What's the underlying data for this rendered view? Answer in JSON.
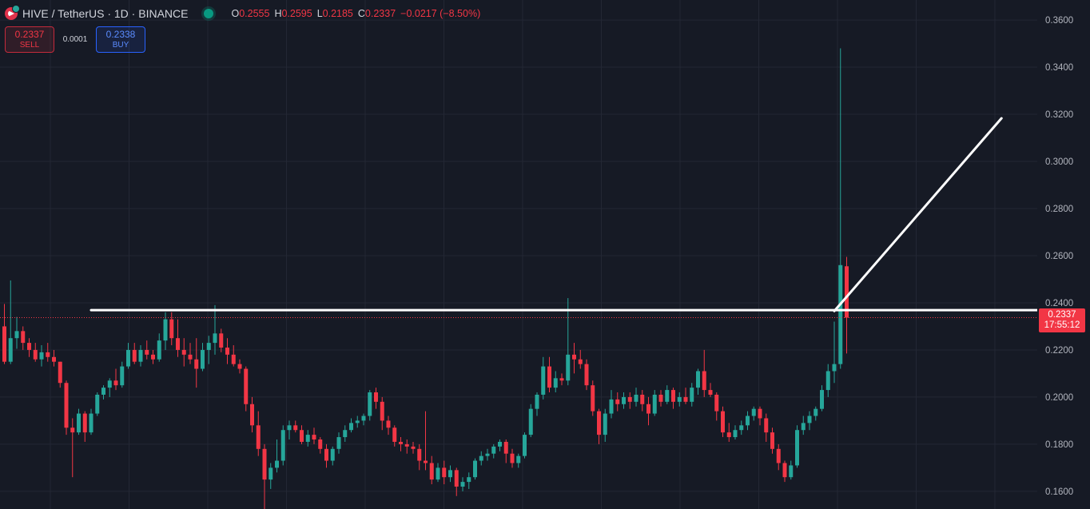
{
  "header": {
    "symbol": "HIVE / TetherUS · 1D · BINANCE",
    "ohlc": [
      {
        "key": "O",
        "value": "0.2555"
      },
      {
        "key": "H",
        "value": "0.2595"
      },
      {
        "key": "L",
        "value": "0.2185"
      },
      {
        "key": "C",
        "value": "0.2337"
      }
    ],
    "change": "−0.0217 (−8.50%)"
  },
  "trade": {
    "sell_price": "0.2337",
    "sell_label": "SELL",
    "spread": "0.0001",
    "buy_price": "0.2338",
    "buy_label": "BUY"
  },
  "price_tag": {
    "price": "0.2337",
    "countdown": "17:55:12"
  },
  "colors": {
    "background": "#161a25",
    "up": "#26a69a",
    "down": "#f23645",
    "grid": "#232734",
    "drawing": "#ffffff"
  },
  "chart_data": {
    "type": "candlestick",
    "ylim": [
      0.1525,
      0.3685
    ],
    "y_ticks": [
      "0.1600",
      "0.1800",
      "0.2000",
      "0.2200",
      "0.2400",
      "0.2600",
      "0.2800",
      "0.3000",
      "0.3200",
      "0.3400",
      "0.3600"
    ],
    "last_price": 0.2337,
    "candles": [
      [
        0.23,
        0.2395,
        0.214,
        0.215
      ],
      [
        0.215,
        0.2495,
        0.214,
        0.225
      ],
      [
        0.225,
        0.234,
        0.2205,
        0.228
      ],
      [
        0.228,
        0.23,
        0.22,
        0.223
      ],
      [
        0.223,
        0.225,
        0.217,
        0.22
      ],
      [
        0.22,
        0.223,
        0.215,
        0.216
      ],
      [
        0.216,
        0.222,
        0.213,
        0.219
      ],
      [
        0.219,
        0.223,
        0.215,
        0.217
      ],
      [
        0.217,
        0.22,
        0.213,
        0.215
      ],
      [
        0.215,
        0.215,
        0.204,
        0.206
      ],
      [
        0.206,
        0.207,
        0.184,
        0.187
      ],
      [
        0.187,
        0.191,
        0.166,
        0.185
      ],
      [
        0.185,
        0.195,
        0.184,
        0.193
      ],
      [
        0.193,
        0.194,
        0.181,
        0.185
      ],
      [
        0.185,
        0.195,
        0.184,
        0.193
      ],
      [
        0.193,
        0.202,
        0.192,
        0.201
      ],
      [
        0.201,
        0.205,
        0.199,
        0.204
      ],
      [
        0.204,
        0.208,
        0.2,
        0.207
      ],
      [
        0.207,
        0.212,
        0.203,
        0.205
      ],
      [
        0.205,
        0.215,
        0.204,
        0.213
      ],
      [
        0.213,
        0.223,
        0.212,
        0.22
      ],
      [
        0.22,
        0.223,
        0.214,
        0.215
      ],
      [
        0.215,
        0.222,
        0.213,
        0.22
      ],
      [
        0.22,
        0.224,
        0.216,
        0.218
      ],
      [
        0.218,
        0.22,
        0.214,
        0.216
      ],
      [
        0.216,
        0.227,
        0.215,
        0.224
      ],
      [
        0.224,
        0.236,
        0.22,
        0.233
      ],
      [
        0.233,
        0.236,
        0.222,
        0.225
      ],
      [
        0.225,
        0.233,
        0.217,
        0.22
      ],
      [
        0.22,
        0.225,
        0.213,
        0.218
      ],
      [
        0.218,
        0.223,
        0.214,
        0.216
      ],
      [
        0.216,
        0.225,
        0.204,
        0.212
      ],
      [
        0.212,
        0.223,
        0.211,
        0.22
      ],
      [
        0.22,
        0.226,
        0.214,
        0.223
      ],
      [
        0.223,
        0.239,
        0.218,
        0.227
      ],
      [
        0.227,
        0.229,
        0.219,
        0.221
      ],
      [
        0.221,
        0.225,
        0.214,
        0.218
      ],
      [
        0.218,
        0.222,
        0.213,
        0.214
      ],
      [
        0.214,
        0.216,
        0.21,
        0.212
      ],
      [
        0.212,
        0.213,
        0.194,
        0.197
      ],
      [
        0.197,
        0.2,
        0.185,
        0.188
      ],
      [
        0.188,
        0.194,
        0.175,
        0.178
      ],
      [
        0.178,
        0.18,
        0.152,
        0.165
      ],
      [
        0.165,
        0.172,
        0.161,
        0.17
      ],
      [
        0.17,
        0.182,
        0.168,
        0.173
      ],
      [
        0.173,
        0.188,
        0.171,
        0.186
      ],
      [
        0.186,
        0.19,
        0.182,
        0.188
      ],
      [
        0.188,
        0.19,
        0.185,
        0.186
      ],
      [
        0.186,
        0.188,
        0.18,
        0.181
      ],
      [
        0.181,
        0.186,
        0.179,
        0.184
      ],
      [
        0.184,
        0.187,
        0.18,
        0.182
      ],
      [
        0.182,
        0.183,
        0.176,
        0.178
      ],
      [
        0.178,
        0.18,
        0.17,
        0.173
      ],
      [
        0.173,
        0.179,
        0.171,
        0.178
      ],
      [
        0.178,
        0.185,
        0.176,
        0.183
      ],
      [
        0.183,
        0.188,
        0.181,
        0.186
      ],
      [
        0.186,
        0.191,
        0.185,
        0.189
      ],
      [
        0.189,
        0.192,
        0.187,
        0.19
      ],
      [
        0.19,
        0.193,
        0.188,
        0.192
      ],
      [
        0.192,
        0.203,
        0.19,
        0.202
      ],
      [
        0.202,
        0.204,
        0.195,
        0.198
      ],
      [
        0.198,
        0.2,
        0.186,
        0.19
      ],
      [
        0.19,
        0.192,
        0.184,
        0.187
      ],
      [
        0.187,
        0.188,
        0.179,
        0.181
      ],
      [
        0.181,
        0.183,
        0.177,
        0.18
      ],
      [
        0.18,
        0.182,
        0.176,
        0.179
      ],
      [
        0.179,
        0.181,
        0.176,
        0.178
      ],
      [
        0.178,
        0.18,
        0.169,
        0.173
      ],
      [
        0.173,
        0.194,
        0.169,
        0.172
      ],
      [
        0.172,
        0.175,
        0.163,
        0.165
      ],
      [
        0.165,
        0.172,
        0.164,
        0.17
      ],
      [
        0.17,
        0.173,
        0.163,
        0.166
      ],
      [
        0.166,
        0.171,
        0.164,
        0.169
      ],
      [
        0.169,
        0.17,
        0.158,
        0.162
      ],
      [
        0.162,
        0.166,
        0.16,
        0.164
      ],
      [
        0.164,
        0.168,
        0.161,
        0.166
      ],
      [
        0.166,
        0.174,
        0.165,
        0.173
      ],
      [
        0.173,
        0.177,
        0.171,
        0.175
      ],
      [
        0.175,
        0.178,
        0.173,
        0.176
      ],
      [
        0.176,
        0.18,
        0.174,
        0.179
      ],
      [
        0.179,
        0.182,
        0.177,
        0.181
      ],
      [
        0.181,
        0.182,
        0.172,
        0.176
      ],
      [
        0.176,
        0.178,
        0.17,
        0.172
      ],
      [
        0.172,
        0.176,
        0.17,
        0.175
      ],
      [
        0.175,
        0.185,
        0.174,
        0.184
      ],
      [
        0.184,
        0.197,
        0.183,
        0.195
      ],
      [
        0.195,
        0.202,
        0.192,
        0.201
      ],
      [
        0.201,
        0.217,
        0.199,
        0.213
      ],
      [
        0.213,
        0.217,
        0.202,
        0.204
      ],
      [
        0.204,
        0.211,
        0.202,
        0.208
      ],
      [
        0.208,
        0.21,
        0.205,
        0.207
      ],
      [
        0.207,
        0.242,
        0.205,
        0.218
      ],
      [
        0.218,
        0.223,
        0.21,
        0.216
      ],
      [
        0.216,
        0.22,
        0.212,
        0.214
      ],
      [
        0.214,
        0.216,
        0.203,
        0.205
      ],
      [
        0.205,
        0.207,
        0.192,
        0.194
      ],
      [
        0.194,
        0.195,
        0.18,
        0.184
      ],
      [
        0.184,
        0.195,
        0.181,
        0.193
      ],
      [
        0.193,
        0.203,
        0.191,
        0.199
      ],
      [
        0.199,
        0.202,
        0.194,
        0.197
      ],
      [
        0.197,
        0.202,
        0.195,
        0.2
      ],
      [
        0.2,
        0.202,
        0.195,
        0.198
      ],
      [
        0.198,
        0.204,
        0.196,
        0.201
      ],
      [
        0.201,
        0.203,
        0.194,
        0.197
      ],
      [
        0.197,
        0.2,
        0.188,
        0.193
      ],
      [
        0.193,
        0.203,
        0.192,
        0.201
      ],
      [
        0.201,
        0.203,
        0.196,
        0.198
      ],
      [
        0.198,
        0.205,
        0.197,
        0.203
      ],
      [
        0.203,
        0.204,
        0.195,
        0.198
      ],
      [
        0.198,
        0.202,
        0.196,
        0.2
      ],
      [
        0.2,
        0.204,
        0.197,
        0.198
      ],
      [
        0.198,
        0.206,
        0.196,
        0.204
      ],
      [
        0.204,
        0.212,
        0.201,
        0.211
      ],
      [
        0.211,
        0.22,
        0.2,
        0.203
      ],
      [
        0.203,
        0.206,
        0.2,
        0.201
      ],
      [
        0.201,
        0.202,
        0.19,
        0.194
      ],
      [
        0.194,
        0.196,
        0.183,
        0.185
      ],
      [
        0.185,
        0.189,
        0.181,
        0.183
      ],
      [
        0.183,
        0.188,
        0.182,
        0.186
      ],
      [
        0.186,
        0.19,
        0.184,
        0.188
      ],
      [
        0.188,
        0.194,
        0.186,
        0.192
      ],
      [
        0.192,
        0.196,
        0.19,
        0.195
      ],
      [
        0.195,
        0.196,
        0.188,
        0.191
      ],
      [
        0.191,
        0.193,
        0.181,
        0.185
      ],
      [
        0.185,
        0.187,
        0.176,
        0.178
      ],
      [
        0.178,
        0.18,
        0.169,
        0.172
      ],
      [
        0.172,
        0.173,
        0.164,
        0.166
      ],
      [
        0.166,
        0.173,
        0.165,
        0.171
      ],
      [
        0.171,
        0.188,
        0.17,
        0.186
      ],
      [
        0.186,
        0.192,
        0.184,
        0.189
      ],
      [
        0.189,
        0.194,
        0.186,
        0.192
      ],
      [
        0.192,
        0.196,
        0.19,
        0.195
      ],
      [
        0.195,
        0.205,
        0.194,
        0.203
      ],
      [
        0.203,
        0.214,
        0.2,
        0.211
      ],
      [
        0.211,
        0.232,
        0.206,
        0.214
      ],
      [
        0.214,
        0.348,
        0.212,
        0.256
      ],
      [
        0.2555,
        0.2595,
        0.2185,
        0.2337
      ]
    ],
    "drawings": [
      {
        "type": "horizontal",
        "x_from": 14,
        "x_to": "right-edge",
        "y": 0.2369
      },
      {
        "type": "projection",
        "x_from": 134,
        "y_from": 0.2365,
        "x_to": 161,
        "y_to": 0.3183
      }
    ]
  }
}
